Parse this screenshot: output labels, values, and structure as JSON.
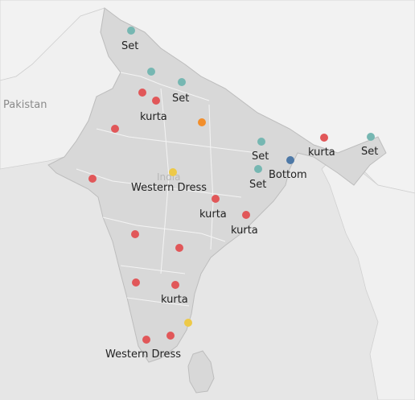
{
  "map": {
    "country_labels": [
      "Pakistan",
      "India"
    ],
    "colors": {
      "set": "#76b7b2",
      "kurta": "#e15759",
      "western_dress": "#edc948",
      "bottom": "#4e79a7",
      "other": "#f28e2b"
    },
    "labels": {
      "set_1": "Set",
      "set_2": "Set",
      "kurta_1": "kurta",
      "set_ne": "Set",
      "kurta_ne": "kurta",
      "set_east_1": "Set",
      "set_east_2": "Set",
      "bottom": "Bottom",
      "western_dress_1": "Western Dress",
      "kurta_c1": "kurta",
      "kurta_c2": "kurta",
      "kurta_s": "kurta",
      "western_dress_2": "Western Dress"
    }
  }
}
